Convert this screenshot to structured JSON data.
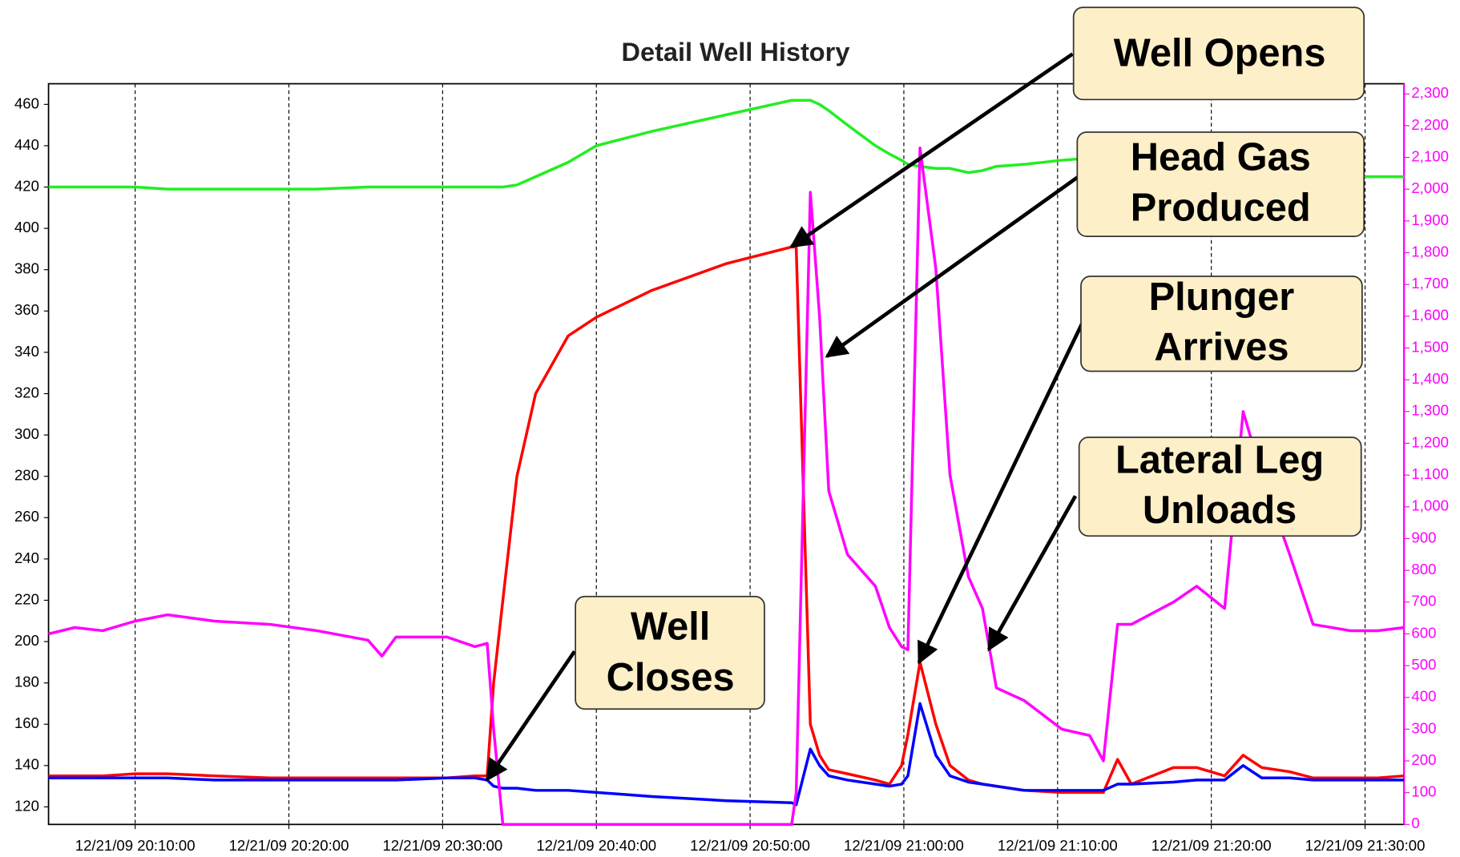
{
  "chart_data": {
    "type": "line",
    "title": "Detail Well History",
    "x": [
      "12/21/09 20:04:22",
      "12/21/09 20:06:04",
      "12/21/09 20:07:53",
      "12/21/09 20:10:00",
      "12/21/09 20:12:07",
      "12/21/09 20:15:09",
      "12/21/09 20:18:47",
      "12/21/09 20:21:49",
      "12/21/09 20:25:09",
      "12/21/09 20:26:03",
      "12/21/09 20:26:58",
      "12/21/09 20:30:17",
      "12/21/09 20:32:06",
      "12/21/09 20:32:54",
      "12/21/09 20:33:19",
      "12/21/09 20:33:55",
      "12/21/09 20:34:50",
      "12/21/09 20:36:03",
      "12/21/09 20:38:10",
      "12/21/09 20:40:00",
      "12/21/09 20:43:37",
      "12/21/09 20:48:28",
      "12/21/09 20:52:42",
      "12/21/09 20:53:00",
      "12/21/09 20:53:55",
      "12/21/09 20:54:31",
      "12/21/09 20:55:07",
      "12/21/09 20:56:20",
      "12/21/09 20:58:09",
      "12/21/09 20:59:04",
      "12/21/09 20:59:51",
      "12/21/09 21:00:16",
      "12/21/09 21:01:03",
      "12/21/09 21:02:05",
      "12/21/09 21:03:00",
      "12/21/09 21:04:12",
      "12/21/09 21:05:07",
      "12/21/09 21:06:01",
      "12/21/09 21:07:50",
      "12/21/09 21:10:16",
      "12/21/09 21:12:05",
      "12/21/09 21:12:59",
      "12/21/09 21:13:54",
      "12/21/09 21:14:48",
      "12/21/09 21:17:32",
      "12/21/09 21:19:03",
      "12/21/09 21:20:52",
      "12/21/09 21:22:04",
      "12/21/09 21:23:17",
      "12/21/09 21:25:06",
      "12/21/09 21:26:37",
      "12/21/09 21:29:02",
      "12/21/09 21:30:51",
      "12/21/09 21:32:32"
    ],
    "series": [
      {
        "color": "#22ee22",
        "values": [
          420,
          420,
          420,
          420,
          419,
          419,
          419,
          419,
          420,
          420,
          420,
          420,
          420,
          420,
          420,
          420,
          421,
          425,
          432,
          440,
          447,
          455,
          462,
          462,
          462,
          460,
          457,
          450,
          440,
          436,
          433,
          431,
          430,
          429,
          429,
          427,
          428,
          430,
          431,
          433,
          434,
          434,
          434,
          433,
          432,
          431,
          430,
          429,
          428,
          427,
          426,
          425,
          425,
          425
        ]
      },
      {
        "color": "#ff0000",
        "values": [
          135,
          135,
          135,
          136,
          136,
          135,
          134,
          134,
          134,
          134,
          134,
          134,
          135,
          135,
          180,
          220,
          280,
          320,
          348,
          357,
          370,
          383,
          391,
          391,
          160,
          145,
          138,
          136,
          133,
          131,
          140,
          155,
          190,
          160,
          140,
          133,
          131,
          130,
          128,
          127,
          127,
          127,
          143,
          131,
          139,
          139,
          135,
          145,
          139,
          137,
          134,
          134,
          134,
          135
        ]
      },
      {
        "color": "#0000ff",
        "values": [
          134,
          134,
          134,
          134,
          134,
          133,
          133,
          133,
          133,
          133,
          133,
          134,
          134,
          133,
          130,
          129,
          129,
          128,
          128,
          127,
          125,
          123,
          122,
          121,
          148,
          140,
          135,
          133,
          131,
          130,
          131,
          135,
          170,
          145,
          135,
          132,
          131,
          130,
          128,
          128,
          128,
          128,
          131,
          131,
          132,
          133,
          133,
          140,
          134,
          134,
          133,
          133,
          133,
          133
        ]
      },
      {
        "color": "#ff00ff",
        "axis": "y2",
        "values": [
          600,
          620,
          610,
          640,
          660,
          640,
          630,
          610,
          580,
          530,
          590,
          590,
          560,
          570,
          300,
          0,
          0,
          0,
          0,
          0,
          0,
          0,
          0,
          100,
          1990,
          1600,
          1050,
          850,
          750,
          620,
          560,
          550,
          2130,
          1750,
          1100,
          780,
          680,
          430,
          390,
          300,
          280,
          200,
          630,
          630,
          700,
          750,
          680,
          1300,
          1100,
          850,
          630,
          610,
          610,
          620
        ]
      }
    ],
    "xlim": [
      "12/21/09 20:04:22",
      "12/21/09 21:32:32"
    ],
    "xticks": [
      "12/21/09 20:10:00",
      "12/21/09 20:20:00",
      "12/21/09 20:30:00",
      "12/21/09 20:40:00",
      "12/21/09 20:50:00",
      "12/21/09 21:00:00",
      "12/21/09 21:10:00",
      "12/21/09 21:20:00",
      "12/21/09 21:30:00"
    ],
    "ylim": [
      111.5,
      470
    ],
    "yticks": [
      120,
      140,
      160,
      180,
      200,
      220,
      240,
      260,
      280,
      300,
      320,
      340,
      360,
      380,
      400,
      420,
      440,
      460
    ],
    "y2lim": [
      0,
      2332
    ],
    "y2ticks": [
      0,
      100,
      200,
      300,
      400,
      500,
      600,
      700,
      800,
      900,
      {
        "value": 1000,
        "label": "1,000"
      },
      {
        "value": 1100,
        "label": "1,100"
      },
      {
        "value": 1200,
        "label": "1,200"
      },
      {
        "value": 1300,
        "label": "1,300"
      },
      {
        "value": 1400,
        "label": "1,400"
      },
      {
        "value": 1500,
        "label": "1,500"
      },
      {
        "value": 1600,
        "label": "1,600"
      },
      {
        "value": 1700,
        "label": "1,700"
      },
      {
        "value": 1800,
        "label": "1,800"
      },
      {
        "value": 1900,
        "label": "1,900"
      },
      {
        "value": 2000,
        "label": "2,000"
      },
      {
        "value": 2100,
        "label": "2,100"
      },
      {
        "value": 2200,
        "label": "2,200"
      },
      {
        "value": 2300,
        "label": "2,300"
      }
    ],
    "y2color": "#ff00ff",
    "grid": "x",
    "annotations": [
      {
        "lines": [
          "Well Opens"
        ]
      },
      {
        "lines": [
          "Head Gas",
          "Produced"
        ]
      },
      {
        "lines": [
          "Plunger",
          "Arrives"
        ]
      },
      {
        "lines": [
          "Lateral Leg",
          "Unloads"
        ]
      },
      {
        "lines": [
          "Well",
          "Closes"
        ]
      }
    ]
  }
}
